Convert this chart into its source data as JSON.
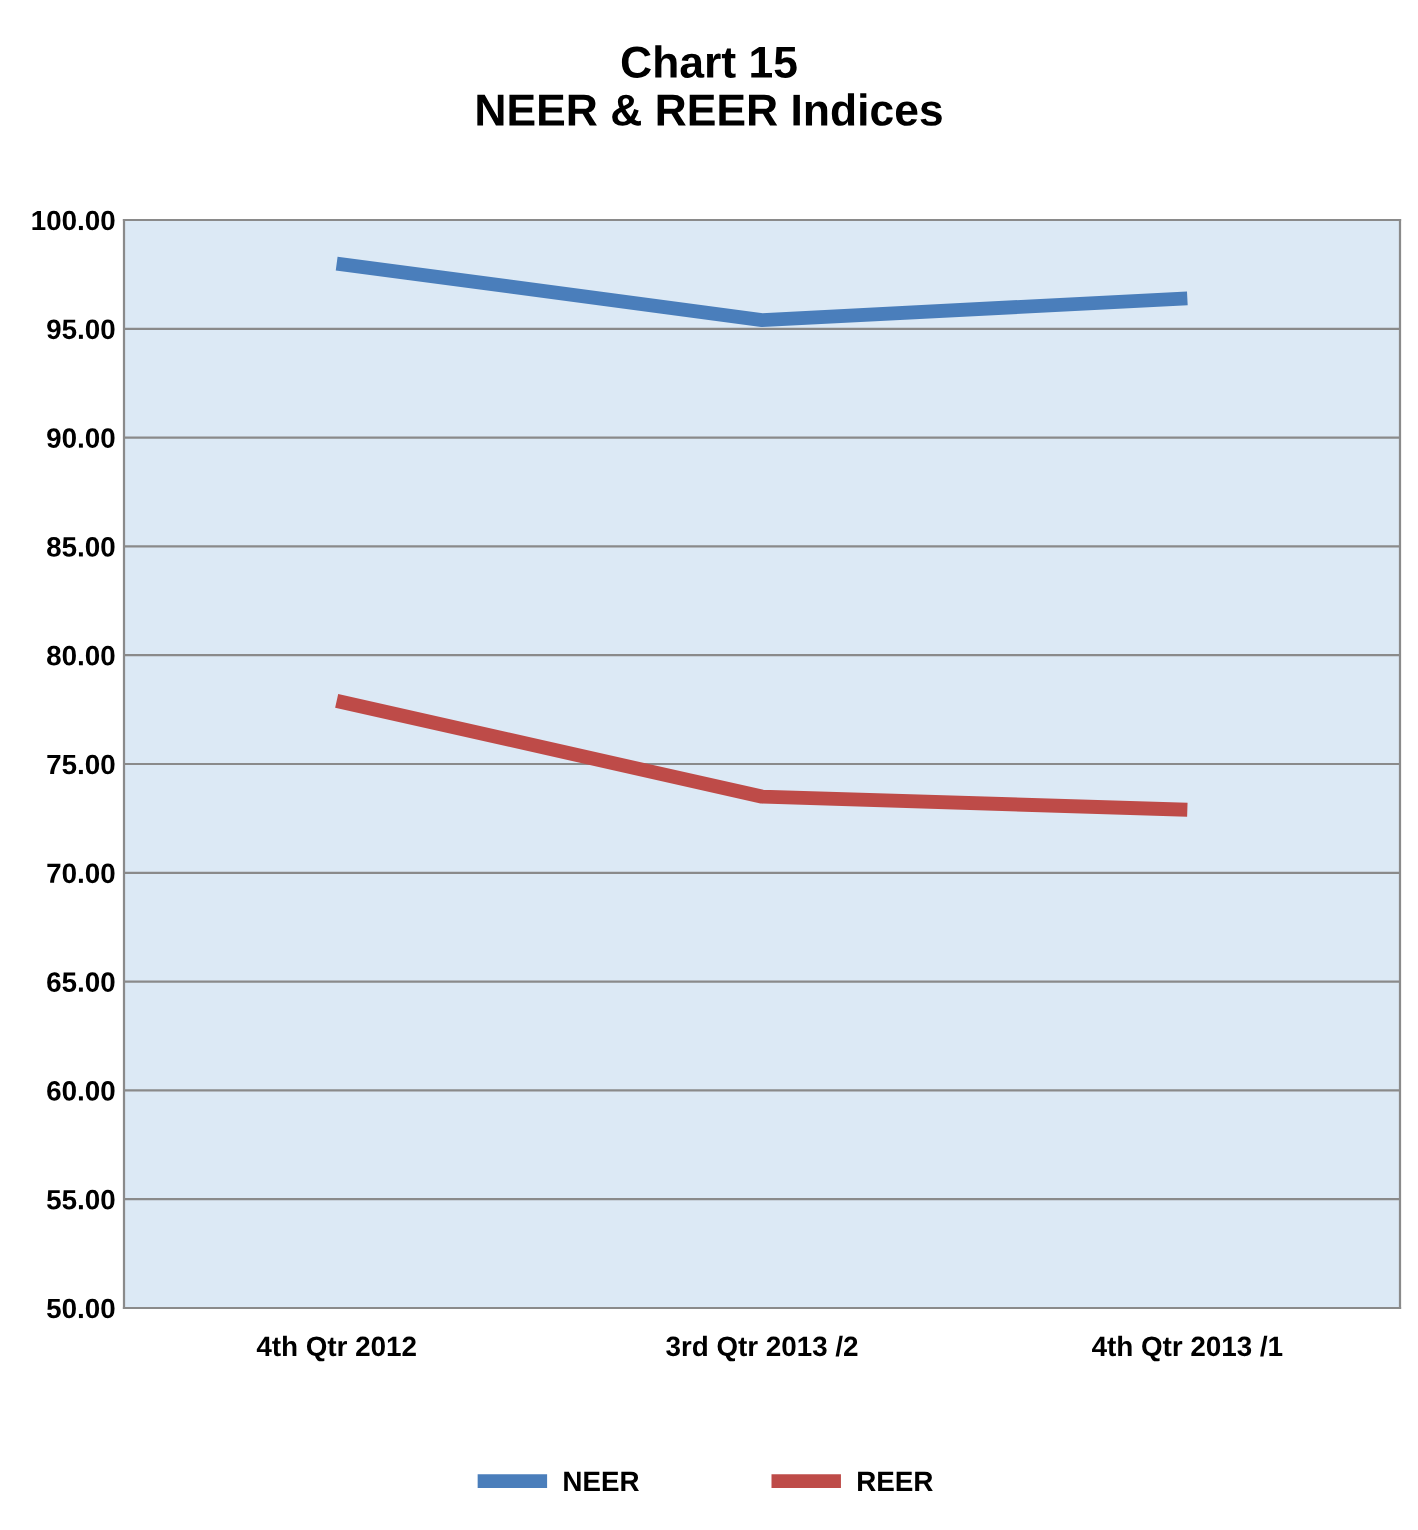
{
  "chart_data": {
    "type": "line",
    "title": "Chart 15\nNEER & REER Indices",
    "categories": [
      "4th Qtr 2012",
      "3rd Qtr 2013 /2",
      "4th Qtr 2013 /1"
    ],
    "series": [
      {
        "name": "NEER",
        "color": "#4a7ebb",
        "values": [
          98.0,
          95.4,
          96.4
        ]
      },
      {
        "name": "REER",
        "color": "#be4b48",
        "values": [
          77.9,
          73.5,
          72.9
        ]
      }
    ],
    "ylim": [
      50,
      100
    ],
    "yticks": [
      {
        "value": 50,
        "label": "50.00"
      },
      {
        "value": 55,
        "label": "55.00"
      },
      {
        "value": 60,
        "label": "60.00"
      },
      {
        "value": 65,
        "label": "65.00"
      },
      {
        "value": 70,
        "label": "70.00"
      },
      {
        "value": 75,
        "label": "75.00"
      },
      {
        "value": 80,
        "label": "80.00"
      },
      {
        "value": 85,
        "label": "85.00"
      },
      {
        "value": 90,
        "label": "90.00"
      },
      {
        "value": 95,
        "label": "95.00"
      },
      {
        "value": 100,
        "label": "100.00"
      }
    ],
    "grid": "y",
    "legend": "bottom",
    "marker": "none",
    "line_style": "solid"
  }
}
